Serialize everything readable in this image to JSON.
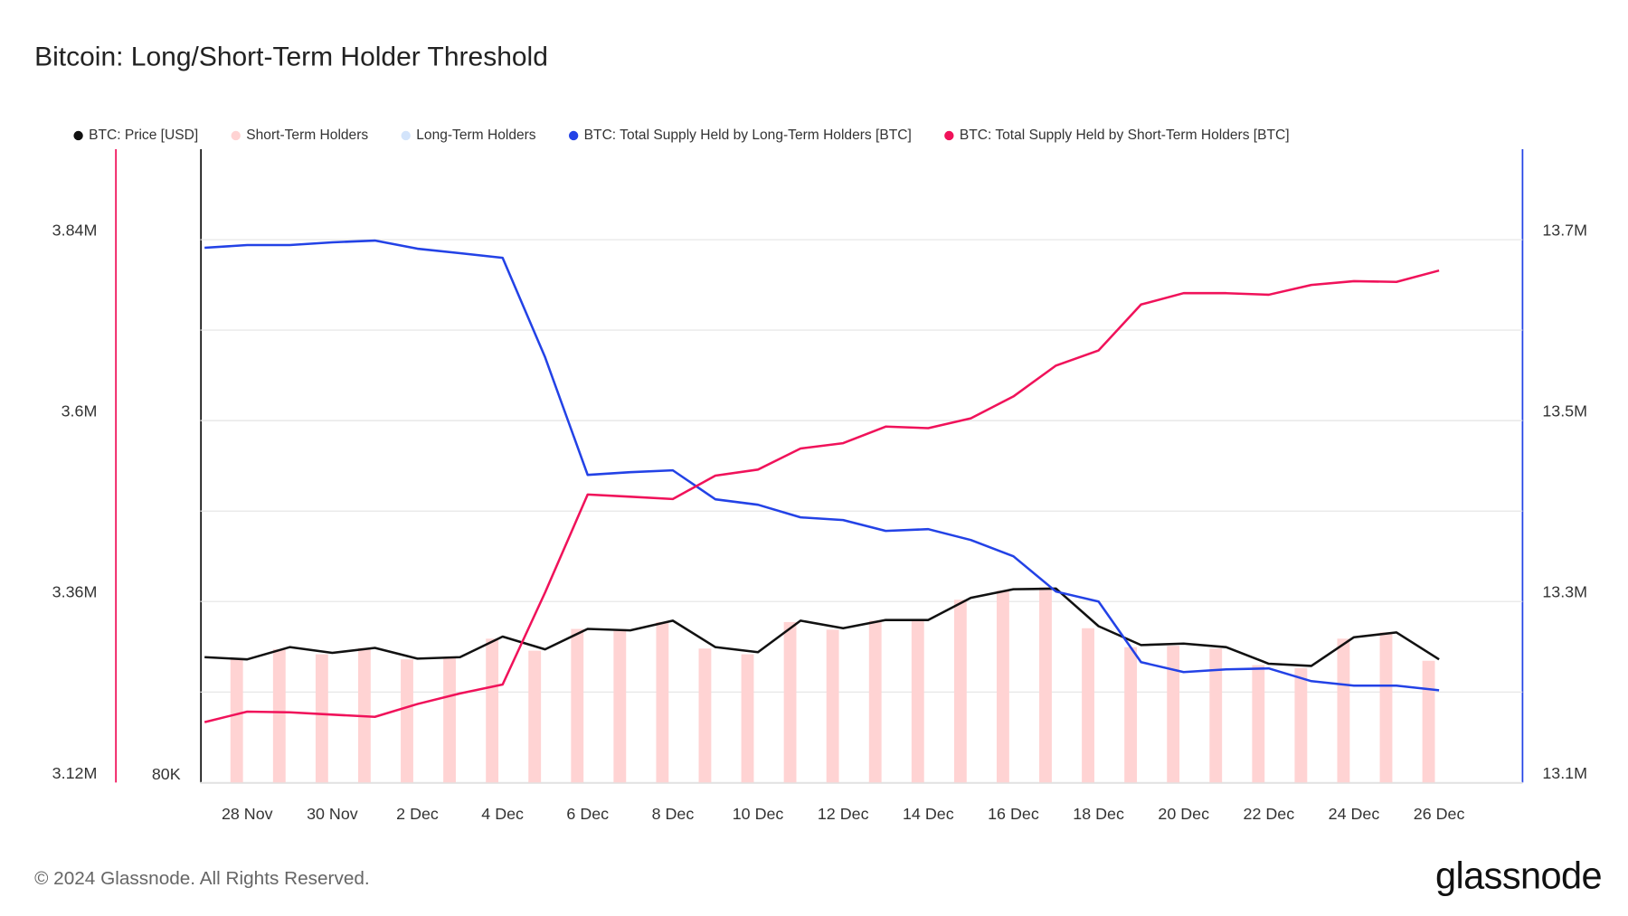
{
  "chart_data": {
    "type": "combo",
    "title": "Bitcoin: Long/Short-Term Holder Threshold",
    "footer": "© 2024 Glassnode. All Rights Reserved.",
    "logo": "glassnode",
    "x": [
      null,
      "28 Nov",
      null,
      "30 Nov",
      null,
      "2 Dec",
      null,
      "4 Dec",
      null,
      "6 Dec",
      null,
      "8 Dec",
      null,
      "10 Dec",
      null,
      "12 Dec",
      null,
      "14 Dec",
      null,
      "16 Dec",
      null,
      "18 Dec",
      null,
      "20 Dec",
      null,
      "22 Dec",
      null,
      "24 Dec",
      null,
      "26 Dec"
    ],
    "ylim": [
      3120000,
      3960000
    ],
    "yticks": [
      {
        "value": 3120000,
        "label": "3.12M"
      },
      {
        "value": 3360000,
        "label": "3.36M"
      },
      {
        "value": 3600000,
        "label": "3.6M"
      },
      {
        "value": 3840000,
        "label": "3.84M"
      }
    ],
    "ygrid": [
      3240000,
      3480000,
      3720000
    ],
    "price_lim": [
      80000,
      200000
    ],
    "price_log": true,
    "price_ticks": [
      {
        "value": 80000,
        "label": "80K"
      }
    ],
    "y2lim": [
      13100000,
      13800000
    ],
    "y2ticks": [
      {
        "value": 13100000,
        "label": "13.1M"
      },
      {
        "value": 13300000,
        "label": "13.3M"
      },
      {
        "value": 13500000,
        "label": "13.5M"
      },
      {
        "value": 13700000,
        "label": "13.7M"
      }
    ],
    "grid": true,
    "series": [
      {
        "name": "BTC: Price [USD]",
        "type": "line",
        "axis": "price",
        "color": "#111111",
        "values": [
          95900,
          95600,
          97300,
          96500,
          97200,
          95700,
          95900,
          98800,
          97000,
          99900,
          99700,
          101100,
          97300,
          96600,
          101100,
          100000,
          101200,
          101200,
          104500,
          105800,
          105900,
          100300,
          97600,
          97800,
          97300,
          95000,
          94700,
          98700,
          99400,
          95600
        ]
      },
      {
        "name": "Short-Term Holders",
        "type": "bar",
        "axis": "price",
        "color": "#ffd3d3",
        "values": [
          null,
          95600,
          97000,
          96300,
          97200,
          95600,
          95900,
          98500,
          96800,
          99900,
          99900,
          100900,
          97100,
          96300,
          100900,
          99800,
          101100,
          101100,
          104200,
          105600,
          106100,
          100000,
          97300,
          97500,
          97100,
          94800,
          94400,
          98500,
          99400,
          95400
        ]
      },
      {
        "name": "Long-Term Holders",
        "type": "bar",
        "axis": "price",
        "color": "#d3e4fb",
        "values": [
          null,
          null,
          null,
          null,
          null,
          null,
          null,
          null,
          null,
          null,
          null,
          null,
          null,
          null,
          null,
          null,
          null,
          null,
          null,
          null,
          null,
          null,
          null,
          null,
          null,
          null,
          null,
          null,
          null,
          null
        ]
      },
      {
        "name": "BTC: Total Supply Held by Long-Term Holders [BTC]",
        "type": "line",
        "axis": "y2",
        "color": "#2342e6",
        "values": [
          13691000,
          13694000,
          13694000,
          13697000,
          13699000,
          13690000,
          13685000,
          13680000,
          13570000,
          13440000,
          13443000,
          13445000,
          13413000,
          13407000,
          13393000,
          13390000,
          13378000,
          13380000,
          13368000,
          13350000,
          13311000,
          13300000,
          13233000,
          13222000,
          13225000,
          13226000,
          13212000,
          13207000,
          13207000,
          13202000
        ]
      },
      {
        "name": "BTC: Total Supply Held by Short-Term Holders [BTC]",
        "type": "line",
        "axis": "y",
        "color": "#f0125a",
        "values": [
          3200000,
          3214000,
          3213000,
          3210000,
          3207000,
          3224000,
          3238000,
          3250000,
          3372000,
          3502000,
          3499000,
          3496000,
          3527000,
          3535000,
          3563000,
          3570000,
          3592000,
          3590000,
          3603000,
          3632000,
          3673000,
          3693000,
          3754000,
          3769000,
          3769000,
          3767000,
          3780000,
          3785000,
          3784000,
          3799000
        ]
      }
    ]
  }
}
